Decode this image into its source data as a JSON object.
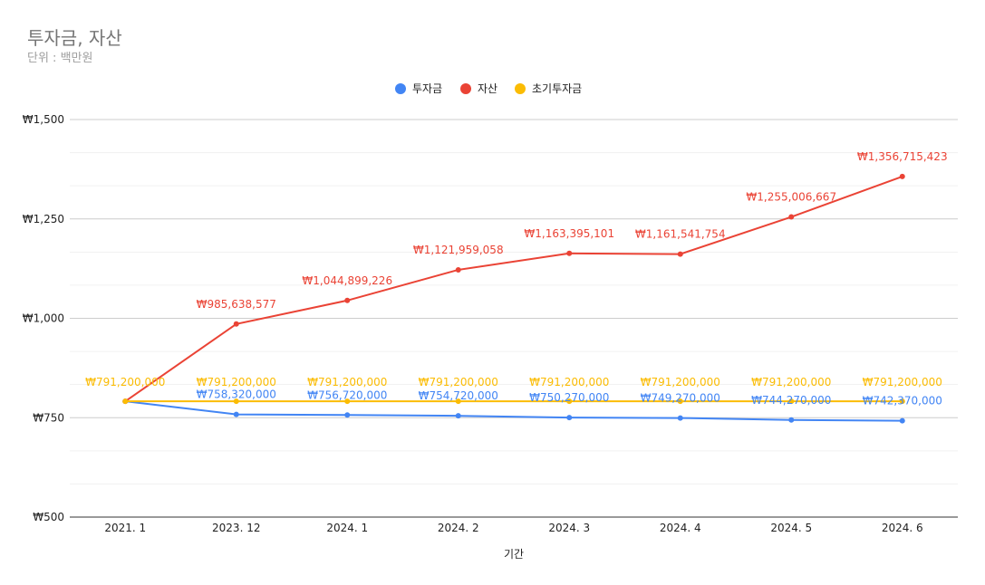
{
  "chart_data": {
    "type": "line",
    "title": "투자금, 자산",
    "subtitle": "단위 : 백만원",
    "xlabel": "기간",
    "ylabel": "",
    "categories": [
      "2021. 1",
      "2023. 12",
      "2024. 1",
      "2024. 2",
      "2024. 3",
      "2024. 4",
      "2024. 5",
      "2024. 6"
    ],
    "ylim": [
      500,
      1500
    ],
    "yticks": [
      500,
      750,
      1000,
      1250,
      1500
    ],
    "ytick_labels": [
      "₩500",
      "₩750",
      "₩1,000",
      "₩1,250",
      "₩1,500"
    ],
    "grid": true,
    "legend_position": "top",
    "series": [
      {
        "name": "투자금",
        "color": "#4285f4",
        "values": [
          791.2,
          758.32,
          756.72,
          754.72,
          750.27,
          749.27,
          744.27,
          742.37
        ],
        "labels": [
          "",
          "₩758,320,000",
          "₩756,720,000",
          "₩754,720,000",
          "₩750,270,000",
          "₩749,270,000",
          "₩744,270,000",
          "₩742,370,000"
        ]
      },
      {
        "name": "자산",
        "color": "#ea4335",
        "values": [
          791.2,
          985.638577,
          1044.899226,
          1121.959058,
          1163.395101,
          1161.541754,
          1255.006667,
          1356.715423
        ],
        "labels": [
          "",
          "₩985,638,577",
          "₩1,044,899,226",
          "₩1,121,959,058",
          "₩1,163,395,101",
          "₩1,161,541,754",
          "₩1,255,006,667",
          "₩1,356,715,423"
        ]
      },
      {
        "name": "초기투자금",
        "color": "#fbbc04",
        "values": [
          791.2,
          791.2,
          791.2,
          791.2,
          791.2,
          791.2,
          791.2,
          791.2
        ],
        "labels": [
          "₩791,200,000",
          "₩791,200,000",
          "₩791,200,000",
          "₩791,200,000",
          "₩791,200,000",
          "₩791,200,000",
          "₩791,200,000",
          "₩791,200,000"
        ]
      }
    ]
  }
}
